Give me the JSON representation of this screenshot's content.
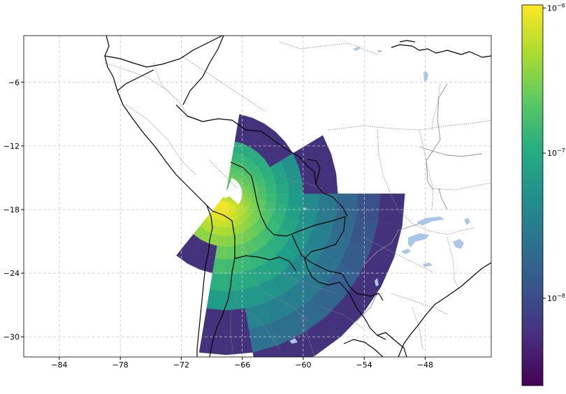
{
  "map": {
    "projection": "PlateCarree",
    "extent": {
      "lon_min": -87.5,
      "lon_max": -41.5,
      "lat_min": -31.9,
      "lat_max": -1.6
    },
    "lon_ticks": [
      -84,
      -78,
      -72,
      -66,
      -60,
      -54,
      -48
    ],
    "lon_tick_labels": [
      "−84",
      "−78",
      "−72",
      "−66",
      "−60",
      "−54",
      "−48"
    ],
    "lat_ticks": [
      -6,
      -12,
      -18,
      -24,
      -30
    ],
    "lat_tick_labels": [
      "−6",
      "−12",
      "−18",
      "−24",
      "−30"
    ],
    "gridlines": true,
    "features": [
      "coastline",
      "country-borders",
      "state-borders",
      "lakes-rivers"
    ]
  },
  "field": {
    "source_lon": -67.6,
    "source_lat": -16.5,
    "radial_bins_deg": [
      0.4,
      0.8,
      1.2,
      1.6,
      2.0,
      2.6,
      3.2,
      4.0,
      5.0,
      6.2,
      7.6,
      9.2,
      11.0,
      13.0,
      15.2,
      17.6
    ],
    "azimuth_bin_deg": 10,
    "lit_azimuth_range_deg": [
      -130,
      75
    ],
    "peak_azimuth_deg": -115,
    "peak_range_deg": 1.3,
    "peak_value": 1e-06
  },
  "colorbar": {
    "colormap": "viridis",
    "scale": "log",
    "vmin": 2.5e-09,
    "vmax": 1.05e-06,
    "ticks": [
      {
        "value": 1e-06,
        "label_base": "10",
        "label_exp": "−6"
      },
      {
        "value": 1e-07,
        "label_base": "10",
        "label_exp": "−7"
      },
      {
        "value": 1e-08,
        "label_base": "10",
        "label_exp": "−8"
      }
    ]
  },
  "colors": {
    "land_border": "#000000",
    "state_border": "#999999",
    "gridline": "#c8c8c8",
    "lake": "#a9c6e8"
  }
}
